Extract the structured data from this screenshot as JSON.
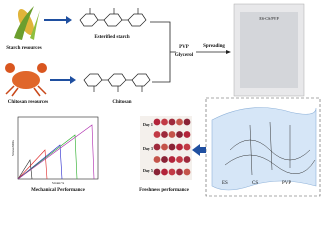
{
  "top": {
    "starch_source": "Starch resources",
    "esterified": "Esterified starch",
    "chitosan_source": "Chitosan resources",
    "chitosan": "Chitosan",
    "pvp": "PVP",
    "glycerol": "Glycerol",
    "spreading": "Spreading",
    "film": "ES-CS/PVP"
  },
  "bottom": {
    "mechanical": "Mechanical Performance",
    "freshness": "Freshness performance",
    "days": [
      "Day 1",
      "Day 3",
      "Day 5"
    ],
    "x_axis": "Strain/%",
    "y_axis": "Stress/MPa",
    "molecules": [
      "ES",
      "CS",
      "PVP"
    ]
  }
}
